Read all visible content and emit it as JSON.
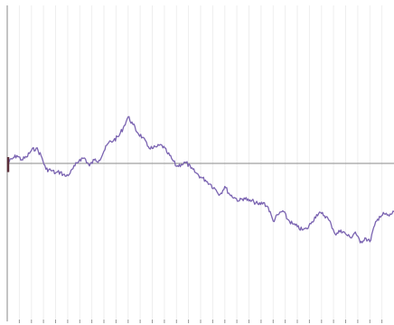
{
  "chart_data": {
    "type": "line",
    "title": "",
    "xlabel": "",
    "ylabel": "",
    "grid": "vertical",
    "x": [
      0,
      2,
      4,
      6,
      8,
      10,
      12,
      14,
      16,
      18,
      20,
      22,
      24,
      26,
      28,
      30,
      32,
      34,
      36,
      38,
      40,
      42,
      44,
      46,
      48,
      50,
      52,
      54,
      56,
      58,
      60,
      62,
      64,
      66,
      68,
      70,
      72,
      74,
      76,
      78,
      80,
      82,
      84,
      86,
      88,
      90,
      92,
      94,
      96,
      98,
      100,
      102,
      104,
      106,
      108,
      110,
      112,
      114,
      116,
      118,
      120,
      122,
      124,
      126,
      128,
      130,
      132,
      134,
      136,
      138,
      140,
      142,
      144,
      146,
      148,
      150,
      152,
      154,
      156,
      158,
      160
    ],
    "xlim": [
      0,
      160
    ],
    "ylim": [
      -100,
      100
    ],
    "baseline": 0,
    "series": [
      {
        "values": [
          0.0,
          2.8,
          5.0,
          2.3,
          4.0,
          8.2,
          9.7,
          5.0,
          -3.7,
          -4.3,
          -6.1,
          -5.5,
          -8.1,
          -6.3,
          -1.6,
          2.6,
          3.4,
          -1.6,
          2.2,
          2.0,
          7.7,
          13.2,
          14.6,
          17.0,
          22.5,
          29.5,
          24.6,
          19.3,
          16.5,
          11.0,
          9.4,
          10.6,
          11.5,
          7.2,
          3.1,
          -1.8,
          -0.6,
          0.6,
          -3.1,
          -5.9,
          -8.6,
          -10.6,
          -13.1,
          -16.1,
          -19.7,
          -14.6,
          -19.6,
          -21.6,
          -23.7,
          -21.8,
          -23.8,
          -24.2,
          -26.1,
          -24.8,
          -28.0,
          -36.5,
          -32.6,
          -30.0,
          -35.4,
          -38.3,
          -40.1,
          -42.1,
          -41.4,
          -37.0,
          -32.4,
          -31.7,
          -33.6,
          -38.6,
          -45.3,
          -42.2,
          -44.7,
          -47.0,
          -43.4,
          -50.3,
          -47.1,
          -49.6,
          -39.2,
          -33.5,
          -32.0,
          -33.3,
          -30.5
        ]
      }
    ],
    "start_marker_value": -5.5,
    "colors": {
      "line": "#7a63b1",
      "start_marker": "#5a2f3a",
      "axis": "#8a8a8a",
      "grid": "#eeeeee",
      "tick": "#999999"
    }
  }
}
